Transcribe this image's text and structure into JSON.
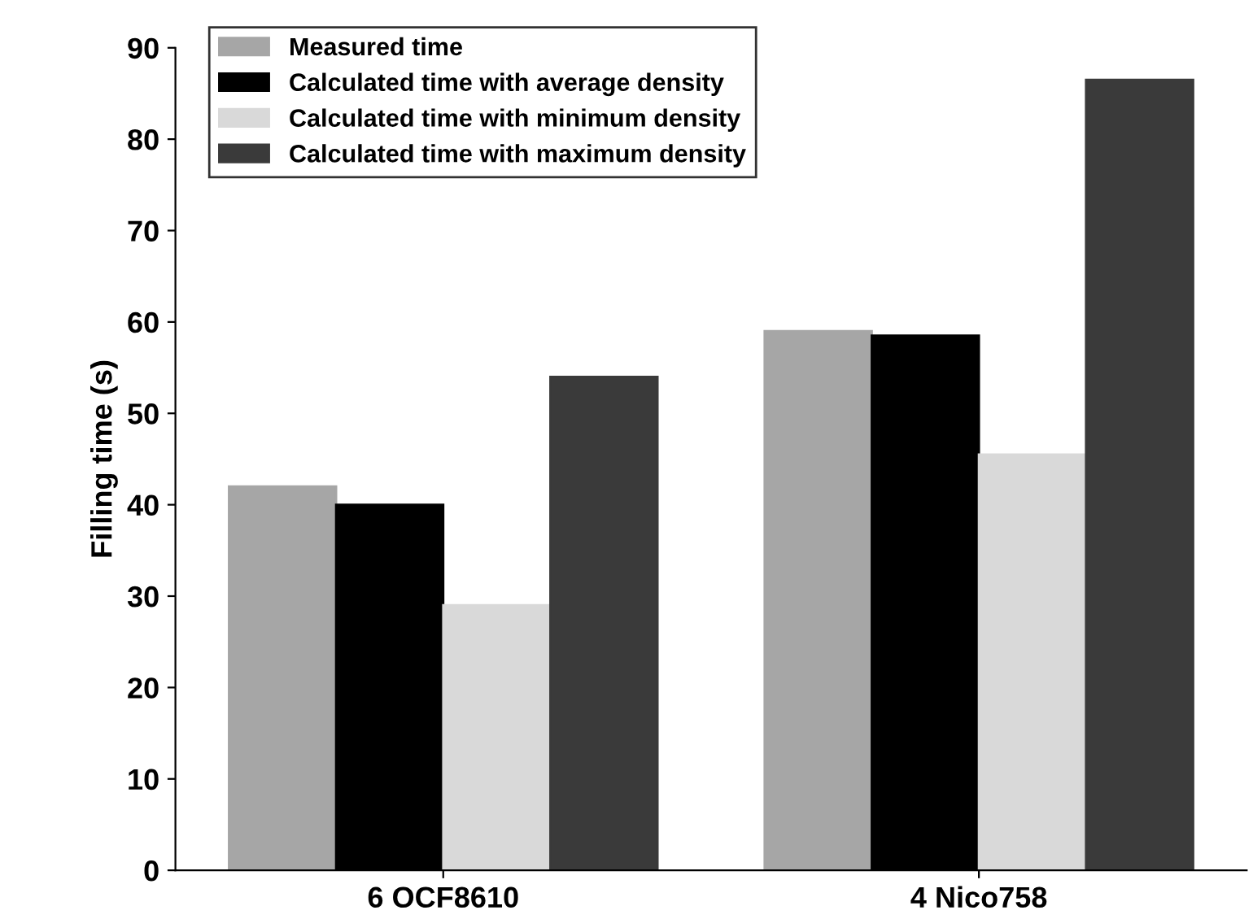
{
  "chart_data": {
    "type": "bar",
    "ylabel": "Filling time (s)",
    "categories": [
      "6 OCF8610",
      "4 Nico758"
    ],
    "series": [
      {
        "name": "Measured time",
        "color": "#a6a6a6",
        "values": [
          42,
          59
        ]
      },
      {
        "name": "Calculated time with average density",
        "color": "#000000",
        "values": [
          40,
          58.5
        ]
      },
      {
        "name": "Calculated time with minimum density",
        "color": "#d9d9d9",
        "values": [
          29,
          45.5
        ]
      },
      {
        "name": "Calculated time with maximum density",
        "color": "#3a3a3a",
        "values": [
          54,
          86.5
        ]
      }
    ],
    "ylim": [
      0,
      90
    ],
    "yticks": [
      0,
      10,
      20,
      30,
      40,
      50,
      60,
      70,
      80,
      90
    ],
    "grid": false,
    "legend": "top left"
  }
}
